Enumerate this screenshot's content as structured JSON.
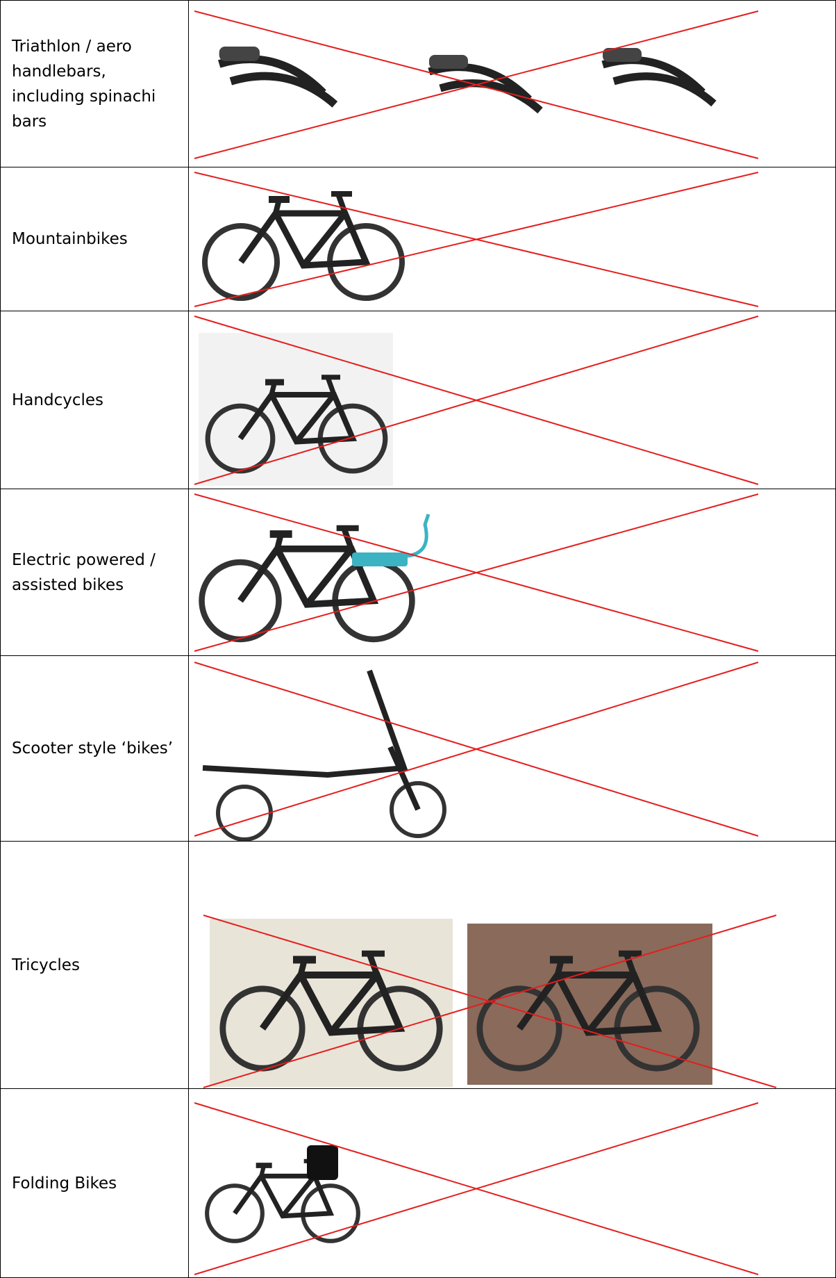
{
  "rows": [
    {
      "label": "Triathlon / aero handlebars, including spinachi bars"
    },
    {
      "label": "Mountainbikes"
    },
    {
      "label": "Handcycles"
    },
    {
      "label": "Electric powered / assisted bikes"
    },
    {
      "label": "Scooter style ‘bikes’"
    },
    {
      "label": "Tricycles"
    },
    {
      "label": "Folding Bikes"
    }
  ]
}
